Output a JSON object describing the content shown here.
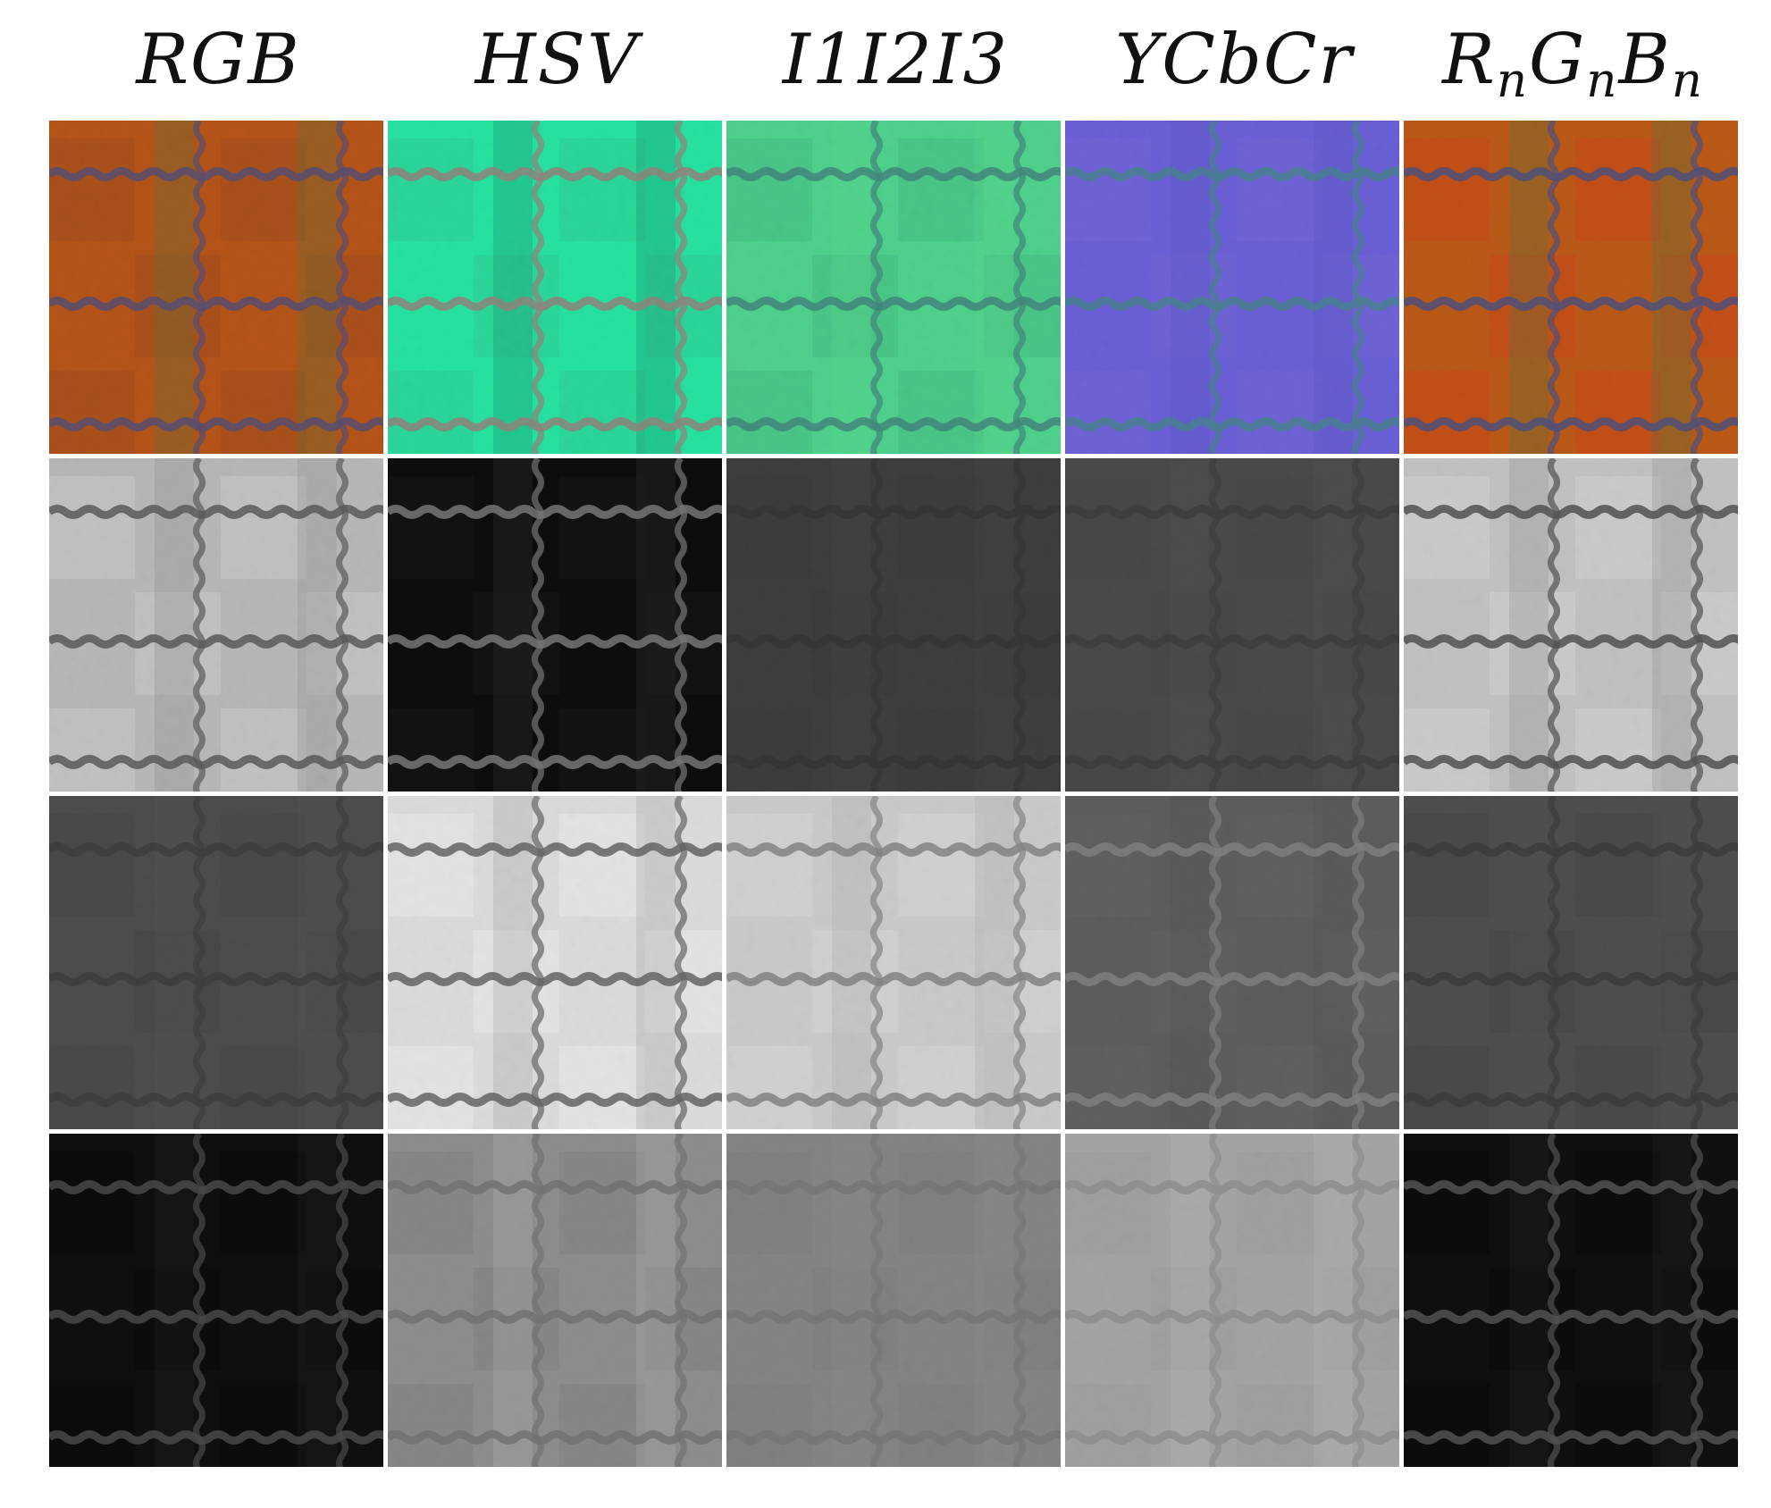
{
  "columns": [
    {
      "label_main": "RGB",
      "label_parts": null
    },
    {
      "label_main": "HSV",
      "label_parts": null
    },
    {
      "label_main": "I1I2I3",
      "label_parts": null
    },
    {
      "label_main": "YCbCr",
      "label_parts": null
    },
    {
      "label_main": "",
      "label_parts": [
        "R",
        "n",
        "G",
        "n",
        "B",
        "n"
      ]
    }
  ],
  "tiles": [
    [
      {
        "base": "#b5541a",
        "line": "#3a4c8e",
        "accent": "#4f7a45",
        "blend": "#9b4a20"
      },
      {
        "base": "#27e2a0",
        "line": "#b26570",
        "accent": "#1c7f66",
        "blend": "#33c590"
      },
      {
        "base": "#4fd18c",
        "line": "#3f6e78",
        "accent": "#5cdb86",
        "blend": "#44b882"
      },
      {
        "base": "#6b60d6",
        "line": "#3e8c7a",
        "accent": "#5a52c4",
        "blend": "#7868d8"
      },
      {
        "base": "#bb5a16",
        "line": "#2c4e9c",
        "accent": "#427a4a",
        "blend": "#d0421c"
      }
    ],
    [
      {
        "base": "#b8b8b8",
        "line": "#3c3c3c",
        "accent": "#8a8a8a",
        "blend": "#cfcfcf"
      },
      {
        "base": "#0d0d0d",
        "line": "#9a9a9a",
        "accent": "#3a3a3a",
        "blend": "#1b1b1b"
      },
      {
        "base": "#3f3f3f",
        "line": "#333333",
        "accent": "#474747",
        "blend": "#3b3b3b"
      },
      {
        "base": "#4a4a4a",
        "line": "#3b3b3b",
        "accent": "#525252",
        "blend": "#464646"
      },
      {
        "base": "#c2c2c2",
        "line": "#2e2e2e",
        "accent": "#8d8d8d",
        "blend": "#d8d8d8"
      }
    ],
    [
      {
        "base": "#4d4d4d",
        "line": "#3a3a3a",
        "accent": "#555555",
        "blend": "#454545"
      },
      {
        "base": "#dcdcdc",
        "line": "#3e3e3e",
        "accent": "#9e9e9e",
        "blend": "#efefef"
      },
      {
        "base": "#cbcbcb",
        "line": "#6c6c6c",
        "accent": "#aaaaaa",
        "blend": "#dadada"
      },
      {
        "base": "#5d5d5d",
        "line": "#8c8c8c",
        "accent": "#545454",
        "blend": "#646464"
      },
      {
        "base": "#4e4e4e",
        "line": "#373737",
        "accent": "#575757",
        "blend": "#444444"
      }
    ],
    [
      {
        "base": "#111111",
        "line": "#5e5e5e",
        "accent": "#262626",
        "blend": "#0a0a0a"
      },
      {
        "base": "#8e8e8e",
        "line": "#6b6b6b",
        "accent": "#b8b8b8",
        "blend": "#7d7d7d"
      },
      {
        "base": "#858585",
        "line": "#727272",
        "accent": "#8f8f8f",
        "blend": "#7c7c7c"
      },
      {
        "base": "#a5a5a5",
        "line": "#878787",
        "accent": "#bcbcbc",
        "blend": "#9a9a9a"
      },
      {
        "base": "#111111",
        "line": "#6a6a6a",
        "accent": "#262626",
        "blend": "#0a0a0a"
      }
    ]
  ]
}
